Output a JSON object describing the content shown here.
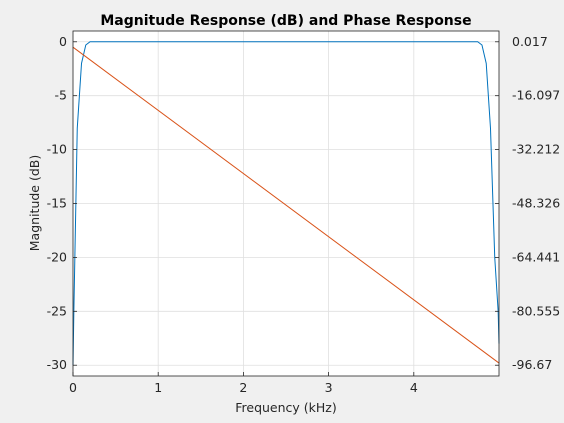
{
  "chart_data": {
    "type": "line",
    "title": "Magnitude Response (dB) and Phase Response",
    "xlabel": "Frequency (kHz)",
    "ylabel": "Magnitude (dB)",
    "ylabel_right": "",
    "xlim": [
      0,
      5
    ],
    "ylim": [
      -31,
      1
    ],
    "grid": true,
    "x_ticks": [
      "0",
      "1",
      "2",
      "3",
      "4"
    ],
    "y_ticks": [
      "0",
      "-5",
      "-10",
      "-15",
      "-20",
      "-25",
      "-30"
    ],
    "y2_ticks": [
      "0.017",
      "-16.097",
      "-32.212",
      "-48.326",
      "-64.441",
      "-80.555",
      "-96.67"
    ],
    "series": [
      {
        "color": "#0072BD",
        "axis": "left",
        "x": [
          0,
          0.01,
          0.05,
          0.1,
          0.15,
          0.2,
          0.25,
          0.5,
          1,
          1.5,
          2,
          2.5,
          3,
          3.5,
          4,
          4.5,
          4.75,
          4.8,
          4.85,
          4.9,
          4.95,
          4.99,
          5
        ],
        "y": [
          -30,
          -25,
          -8,
          -2,
          -0.3,
          0,
          0,
          0,
          0,
          0,
          0,
          0,
          0,
          0,
          0,
          0,
          0,
          -0.3,
          -2,
          -8,
          -20,
          -25,
          -28
        ]
      },
      {
        "color": "#D95319",
        "axis": "left",
        "x": [
          0,
          5
        ],
        "y": [
          -0.5,
          -29.8
        ]
      }
    ]
  }
}
